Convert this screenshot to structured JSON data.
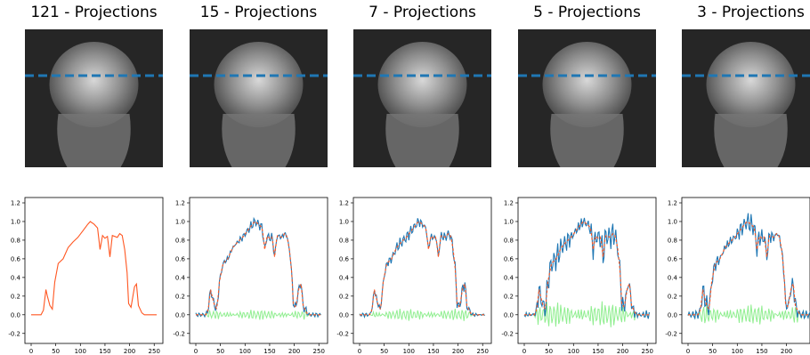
{
  "chart_data": [
    {
      "type": "image+line",
      "title": "121 - Projections",
      "xlim": [
        0,
        255
      ],
      "ylim": [
        -0.25,
        1.2
      ],
      "xticks": [
        "0",
        "50",
        "100",
        "150",
        "200",
        "250"
      ],
      "yticks": [
        "-0.2",
        "0.0",
        "0.2",
        "0.4",
        "0.6",
        "0.8",
        "1.0",
        "1.2"
      ],
      "series": [
        {
          "color": "#ff5722",
          "style": "solid",
          "points": [
            [
              0,
              0
            ],
            [
              20,
              0
            ],
            [
              25,
              0.05
            ],
            [
              30,
              0.27
            ],
            [
              33,
              0.2
            ],
            [
              38,
              0.1
            ],
            [
              43,
              0.06
            ],
            [
              48,
              0.35
            ],
            [
              55,
              0.55
            ],
            [
              65,
              0.6
            ],
            [
              75,
              0.72
            ],
            [
              85,
              0.78
            ],
            [
              95,
              0.83
            ],
            [
              105,
              0.9
            ],
            [
              115,
              0.97
            ],
            [
              120,
              1.0
            ],
            [
              128,
              0.97
            ],
            [
              135,
              0.93
            ],
            [
              140,
              0.7
            ],
            [
              145,
              0.85
            ],
            [
              150,
              0.82
            ],
            [
              155,
              0.84
            ],
            [
              160,
              0.62
            ],
            [
              165,
              0.85
            ],
            [
              175,
              0.83
            ],
            [
              180,
              0.87
            ],
            [
              185,
              0.85
            ],
            [
              190,
              0.7
            ],
            [
              195,
              0.45
            ],
            [
              198,
              0.12
            ],
            [
              203,
              0.08
            ],
            [
              210,
              0.3
            ],
            [
              214,
              0.33
            ],
            [
              218,
              0.1
            ],
            [
              225,
              0.02
            ],
            [
              230,
              0
            ],
            [
              255,
              0
            ]
          ]
        }
      ]
    },
    {
      "type": "image+line",
      "title": "15 - Projections",
      "xlim": [
        0,
        255
      ],
      "ylim": [
        -0.25,
        1.2
      ],
      "xticks": [
        "0",
        "50",
        "100",
        "150",
        "200",
        "250"
      ],
      "yticks": [
        "-0.2",
        "0.0",
        "0.2",
        "0.4",
        "0.6",
        "0.8",
        "1.0",
        "1.2"
      ],
      "error_amplitude": 0.06,
      "series": [
        {
          "color": "#1f77b4",
          "style": "solid",
          "role": "reconstruction"
        },
        {
          "color": "#ff5722",
          "style": "dashed",
          "role": "reference"
        },
        {
          "color": "#90ee90",
          "style": "solid",
          "role": "error"
        }
      ]
    },
    {
      "type": "image+line",
      "title": "7 - Projections",
      "xlim": [
        0,
        255
      ],
      "ylim": [
        -0.25,
        1.2
      ],
      "xticks": [
        "0",
        "50",
        "100",
        "150",
        "200",
        "250"
      ],
      "yticks": [
        "-0.2",
        "0.0",
        "0.2",
        "0.4",
        "0.6",
        "0.8",
        "1.0",
        "1.2"
      ],
      "error_amplitude": 0.07,
      "series": [
        {
          "color": "#1f77b4",
          "style": "solid",
          "role": "reconstruction"
        },
        {
          "color": "#ff5722",
          "style": "dashed",
          "role": "reference"
        },
        {
          "color": "#90ee90",
          "style": "solid",
          "role": "error"
        }
      ]
    },
    {
      "type": "image+line",
      "title": "5 - Projections",
      "xlim": [
        0,
        255
      ],
      "ylim": [
        -0.25,
        1.2
      ],
      "xticks": [
        "0",
        "50",
        "100",
        "150",
        "200",
        "250"
      ],
      "yticks": [
        "-0.2",
        "0.0",
        "0.2",
        "0.4",
        "0.6",
        "0.8",
        "1.0",
        "1.2"
      ],
      "error_amplitude": 0.15,
      "series": [
        {
          "color": "#1f77b4",
          "style": "solid",
          "role": "reconstruction"
        },
        {
          "color": "#ff5722",
          "style": "dashed",
          "role": "reference"
        },
        {
          "color": "#90ee90",
          "style": "solid",
          "role": "error"
        }
      ]
    },
    {
      "type": "image+line",
      "title": "3 - Projections",
      "xlim": [
        0,
        255
      ],
      "ylim": [
        -0.25,
        1.2
      ],
      "xticks": [
        "0",
        "50",
        "100",
        "150",
        "200",
        "250"
      ],
      "yticks": [
        "-0.2",
        "0.0",
        "0.2",
        "0.4",
        "0.6",
        "0.8",
        "1.0",
        "1.2"
      ],
      "error_amplitude": 0.12,
      "series": [
        {
          "color": "#1f77b4",
          "style": "solid",
          "role": "reconstruction"
        },
        {
          "color": "#ff5722",
          "style": "dashed",
          "role": "reference"
        },
        {
          "color": "#90ee90",
          "style": "solid",
          "role": "error"
        }
      ]
    }
  ],
  "colors": {
    "profile_line": "#1f77b4",
    "reference": "#ff5722",
    "error": "#90ee90",
    "image_background": "#262626"
  }
}
